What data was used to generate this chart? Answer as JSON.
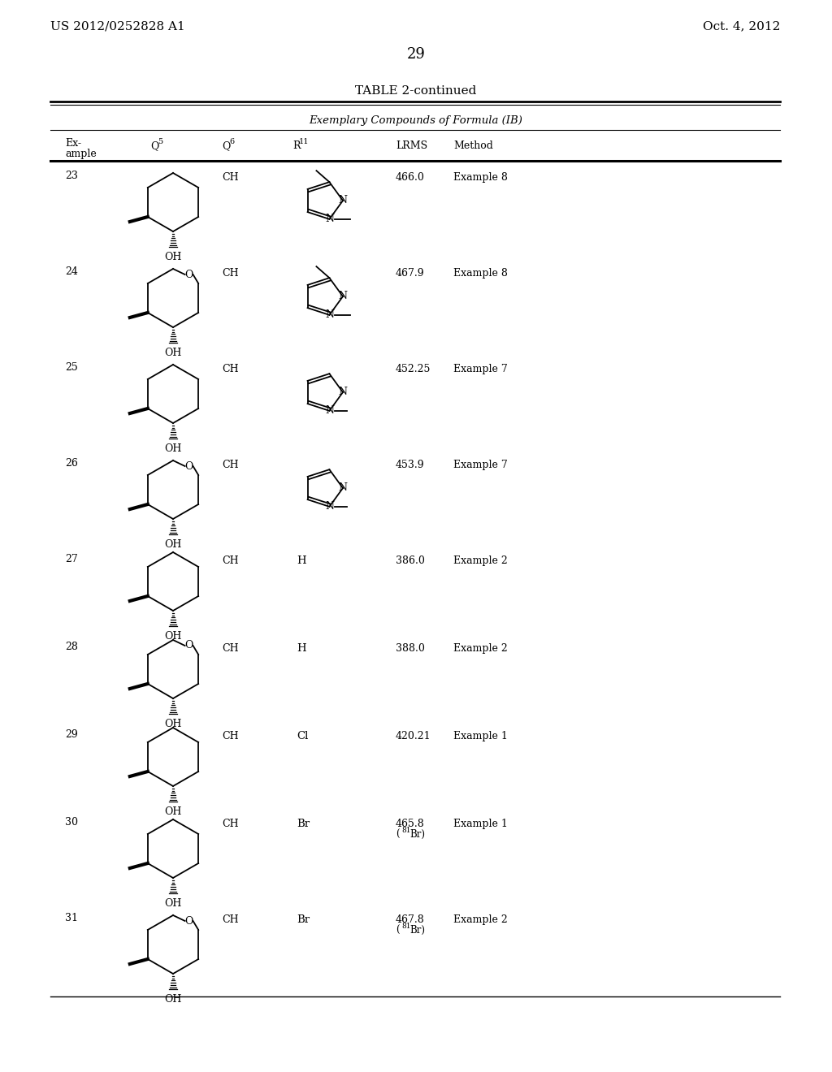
{
  "page_header_left": "US 2012/0252828 A1",
  "page_header_right": "Oct. 4, 2012",
  "page_number": "29",
  "table_title": "TABLE 2-continued",
  "table_subtitle": "Exemplary Compounds of Formula (IB)",
  "bg_color": "#ffffff",
  "text_color": "#000000",
  "rows": [
    {
      "ex": "23",
      "has_O": false,
      "Q6": "CH",
      "R11": "pyrazole_3me_1me",
      "LRMS": "466.0",
      "lrms2": "",
      "Method": "Example 8"
    },
    {
      "ex": "24",
      "has_O": true,
      "Q6": "CH",
      "R11": "pyrazole_3me_1me",
      "LRMS": "467.9",
      "lrms2": "",
      "Method": "Example 8"
    },
    {
      "ex": "25",
      "has_O": false,
      "Q6": "CH",
      "R11": "pyrazole_3me_1me_plain",
      "LRMS": "452.25",
      "lrms2": "",
      "Method": "Example 7"
    },
    {
      "ex": "26",
      "has_O": true,
      "Q6": "CH",
      "R11": "pyrazole_3me_1me_plain",
      "LRMS": "453.9",
      "lrms2": "",
      "Method": "Example 7"
    },
    {
      "ex": "27",
      "has_O": false,
      "Q6": "CH",
      "R11": "H",
      "LRMS": "386.0",
      "lrms2": "",
      "Method": "Example 2"
    },
    {
      "ex": "28",
      "has_O": true,
      "Q6": "CH",
      "R11": "H",
      "LRMS": "388.0",
      "lrms2": "",
      "Method": "Example 2"
    },
    {
      "ex": "29",
      "has_O": false,
      "Q6": "CH",
      "R11": "Cl",
      "LRMS": "420.21",
      "lrms2": "",
      "Method": "Example 1"
    },
    {
      "ex": "30",
      "has_O": false,
      "Q6": "CH",
      "R11": "Br",
      "LRMS": "465.8",
      "lrms2": "(81Br)",
      "Method": "Example 1"
    },
    {
      "ex": "31",
      "has_O": true,
      "Q6": "CH",
      "R11": "Br",
      "LRMS": "467.8",
      "lrms2": "(81Br)",
      "Method": "Example 2"
    }
  ]
}
